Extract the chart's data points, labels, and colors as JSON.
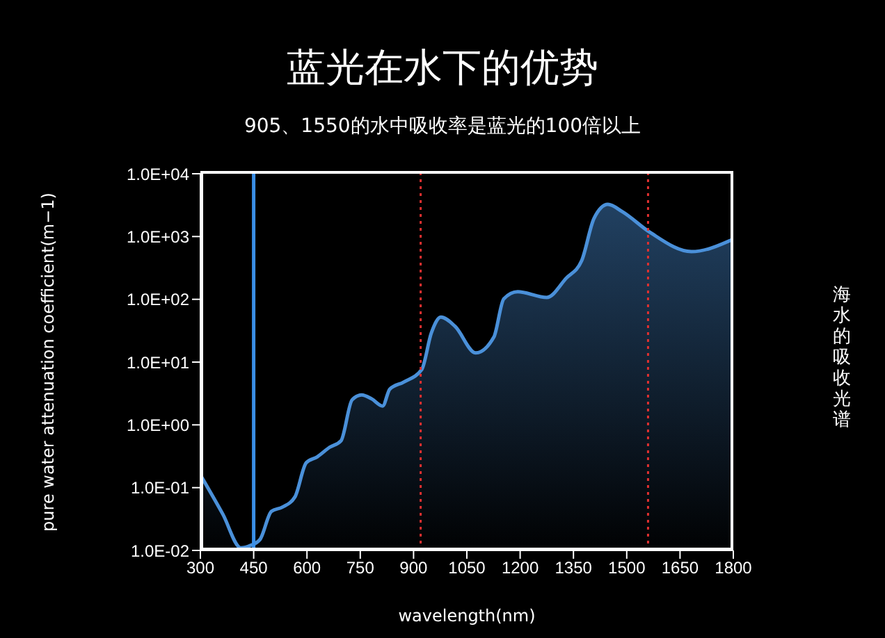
{
  "chart_data": {
    "type": "area",
    "title": "蓝光在水下的优势",
    "subtitle": "905、1550的水中吸收率是蓝光的100倍以上",
    "xlabel": "wavelength(nm)",
    "ylabel": "pure water attenuation coefficient(m−1)",
    "annotations": [
      "海水的吸收光谱"
    ],
    "x": [
      300,
      363,
      414,
      441,
      468,
      500,
      531,
      566,
      598,
      629,
      664,
      696,
      727,
      754,
      782,
      813,
      833,
      872,
      923,
      950,
      977,
      1017,
      1075,
      1126,
      1154,
      1193,
      1275,
      1330,
      1373,
      1408,
      1447,
      1487,
      1565,
      1682,
      1800
    ],
    "series": [
      {
        "color": "#4a90d9",
        "values": [
          0.16,
          0.038,
          0.011,
          0.012,
          0.015,
          0.042,
          0.049,
          0.071,
          0.25,
          0.31,
          0.44,
          0.56,
          2.5,
          3.0,
          2.6,
          2.0,
          3.7,
          4.8,
          7.6,
          29,
          52,
          37,
          14,
          25,
          102,
          132,
          107,
          218,
          410,
          1950,
          3250,
          2500,
          1170,
          575,
          910
        ]
      }
    ],
    "log": "y",
    "xlim": [
      300,
      1800
    ],
    "xticks": [
      300,
      450,
      600,
      750,
      900,
      1050,
      1200,
      1350,
      1500,
      1650,
      1800
    ],
    "ylim": [
      0.01,
      10000
    ],
    "yticks": [
      {
        "value": 0.01,
        "label": "1.0E-02"
      },
      {
        "value": 0.1,
        "label": "1.0E-01"
      },
      {
        "value": 1,
        "label": "1.0E+00"
      },
      {
        "value": 10,
        "label": "1.0E+01"
      },
      {
        "value": 100,
        "label": "1.0E+02"
      },
      {
        "value": 1000,
        "label": "1.0E+03"
      },
      {
        "value": 10000,
        "label": "1.0E+04"
      }
    ],
    "ref_lines": [
      {
        "axis": "x",
        "value": 450,
        "color": "#3a8ee6",
        "line_style": "solid"
      },
      {
        "axis": "x",
        "value": 920,
        "color": "#e03030",
        "line_style": "dotted"
      },
      {
        "axis": "x",
        "value": 1560,
        "color": "#e03030",
        "line_style": "dotted"
      }
    ],
    "grid": false,
    "legend": false
  }
}
